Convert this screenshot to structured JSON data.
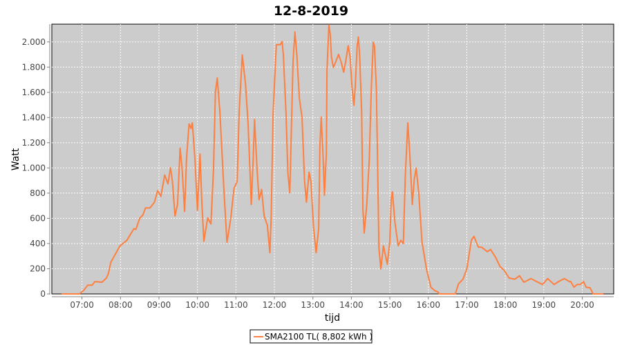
{
  "chart_data": {
    "type": "line",
    "title": "12-8-2019",
    "xlabel": "tijd",
    "ylabel": "Watt",
    "xlim": [
      "06:13",
      "20:49"
    ],
    "ylim": [
      0,
      2141
    ],
    "x_ticks": [
      "07:00",
      "08:00",
      "09:00",
      "10:00",
      "11:00",
      "12:00",
      "13:00",
      "14:00",
      "15:00",
      "16:00",
      "17:00",
      "18:00",
      "19:00",
      "20:00"
    ],
    "y_ticks": [
      0,
      200,
      400,
      600,
      800,
      1000,
      1200,
      1400,
      1600,
      1800,
      2000
    ],
    "y_tick_labels": [
      "0",
      "200",
      "400",
      "600",
      "800",
      "1.000",
      "1.200",
      "1.400",
      "1.600",
      "1.800",
      "2.000"
    ],
    "grid": true,
    "background": "#cccccc",
    "legend_position": "bottom",
    "series": [
      {
        "name": "SMA2100 TL( 8,802 kWh )",
        "color": "#ff7f3f",
        "points": [
          [
            "06:28",
            0
          ],
          [
            "06:56",
            0
          ],
          [
            "07:03",
            30
          ],
          [
            "07:09",
            70
          ],
          [
            "07:16",
            70
          ],
          [
            "07:20",
            98
          ],
          [
            "07:31",
            93
          ],
          [
            "07:38",
            126
          ],
          [
            "07:41",
            160
          ],
          [
            "07:45",
            252
          ],
          [
            "07:59",
            380
          ],
          [
            "08:10",
            426
          ],
          [
            "08:21",
            518
          ],
          [
            "08:24",
            512
          ],
          [
            "08:30",
            600
          ],
          [
            "08:35",
            627
          ],
          [
            "08:39",
            682
          ],
          [
            "08:46",
            682
          ],
          [
            "08:53",
            728
          ],
          [
            "08:58",
            820
          ],
          [
            "09:03",
            774
          ],
          [
            "09:09",
            944
          ],
          [
            "09:14",
            874
          ],
          [
            "09:18",
            1002
          ],
          [
            "09:21",
            893
          ],
          [
            "09:25",
            619
          ],
          [
            "09:29",
            710
          ],
          [
            "09:33",
            1157
          ],
          [
            "09:36",
            1002
          ],
          [
            "09:40",
            655
          ],
          [
            "09:43",
            1075
          ],
          [
            "09:47",
            1349
          ],
          [
            "09:50",
            1312
          ],
          [
            "09:52",
            1358
          ],
          [
            "09:56",
            1075
          ],
          [
            "10:00",
            664
          ],
          [
            "10:04",
            1111
          ],
          [
            "10:07",
            710
          ],
          [
            "10:10",
            418
          ],
          [
            "10:16",
            604
          ],
          [
            "10:21",
            555
          ],
          [
            "10:25",
            984
          ],
          [
            "10:28",
            1605
          ],
          [
            "10:31",
            1714
          ],
          [
            "10:35",
            1440
          ],
          [
            "10:41",
            856
          ],
          [
            "10:46",
            409
          ],
          [
            "10:52",
            600
          ],
          [
            "10:57",
            838
          ],
          [
            "11:02",
            893
          ],
          [
            "11:05",
            1440
          ],
          [
            "11:10",
            1897
          ],
          [
            "11:15",
            1660
          ],
          [
            "11:19",
            1349
          ],
          [
            "11:24",
            710
          ],
          [
            "11:27",
            1075
          ],
          [
            "11:29",
            1385
          ],
          [
            "11:33",
            984
          ],
          [
            "11:36",
            747
          ],
          [
            "11:40",
            829
          ],
          [
            "11:44",
            619
          ],
          [
            "11:49",
            546
          ],
          [
            "11:53",
            327
          ],
          [
            "11:55",
            619
          ],
          [
            "11:58",
            1440
          ],
          [
            "12:03",
            1978
          ],
          [
            "12:09",
            1978
          ],
          [
            "12:12",
            2002
          ],
          [
            "12:14",
            1897
          ],
          [
            "12:18",
            1440
          ],
          [
            "12:21",
            966
          ],
          [
            "12:24",
            802
          ],
          [
            "12:26",
            1221
          ],
          [
            "12:29",
            1842
          ],
          [
            "12:32",
            2080
          ],
          [
            "12:35",
            1897
          ],
          [
            "12:39",
            1550
          ],
          [
            "12:43",
            1404
          ],
          [
            "12:47",
            893
          ],
          [
            "12:50",
            728
          ],
          [
            "12:54",
            966
          ],
          [
            "12:57",
            893
          ],
          [
            "13:01",
            527
          ],
          [
            "13:05",
            327
          ],
          [
            "13:09",
            520
          ],
          [
            "13:11",
            1177
          ],
          [
            "13:13",
            1404
          ],
          [
            "13:16",
            1075
          ],
          [
            "13:18",
            783
          ],
          [
            "13:21",
            1111
          ],
          [
            "13:22",
            1769
          ],
          [
            "13:25",
            2135
          ],
          [
            "13:27",
            2062
          ],
          [
            "13:29",
            1879
          ],
          [
            "13:32",
            1797
          ],
          [
            "13:35",
            1834
          ],
          [
            "13:40",
            1901
          ],
          [
            "13:44",
            1842
          ],
          [
            "13:48",
            1760
          ],
          [
            "13:51",
            1842
          ],
          [
            "13:55",
            1970
          ],
          [
            "13:58",
            1879
          ],
          [
            "14:01",
            1642
          ],
          [
            "14:04",
            1496
          ],
          [
            "14:06",
            1642
          ],
          [
            "14:09",
            1970
          ],
          [
            "14:11",
            2039
          ],
          [
            "14:13",
            1879
          ],
          [
            "14:16",
            1440
          ],
          [
            "14:18",
            674
          ],
          [
            "14:20",
            483
          ],
          [
            "14:24",
            710
          ],
          [
            "14:28",
            1075
          ],
          [
            "14:31",
            1623
          ],
          [
            "14:34",
            1997
          ],
          [
            "14:36",
            1970
          ],
          [
            "14:39",
            1623
          ],
          [
            "14:41",
            984
          ],
          [
            "14:43",
            364
          ],
          [
            "14:46",
            199
          ],
          [
            "14:50",
            382
          ],
          [
            "14:56",
            236
          ],
          [
            "15:00",
            418
          ],
          [
            "15:02",
            747
          ],
          [
            "15:04",
            811
          ],
          [
            "15:08",
            564
          ],
          [
            "15:13",
            382
          ],
          [
            "15:17",
            426
          ],
          [
            "15:21",
            400
          ],
          [
            "15:24",
            930
          ],
          [
            "15:28",
            1358
          ],
          [
            "15:31",
            1111
          ],
          [
            "15:35",
            710
          ],
          [
            "15:38",
            911
          ],
          [
            "15:41",
            999
          ],
          [
            "15:45",
            802
          ],
          [
            "15:50",
            418
          ],
          [
            "15:57",
            199
          ],
          [
            "16:04",
            53
          ],
          [
            "16:10",
            26
          ],
          [
            "16:15",
            16
          ],
          [
            "16:17",
            0
          ],
          [
            "16:42",
            0
          ],
          [
            "16:47",
            80
          ],
          [
            "16:54",
            117
          ],
          [
            "17:00",
            199
          ],
          [
            "17:07",
            426
          ],
          [
            "17:11",
            457
          ],
          [
            "17:18",
            371
          ],
          [
            "17:23",
            371
          ],
          [
            "17:32",
            335
          ],
          [
            "17:37",
            353
          ],
          [
            "17:45",
            289
          ],
          [
            "17:52",
            216
          ],
          [
            "17:58",
            189
          ],
          [
            "18:06",
            126
          ],
          [
            "18:15",
            117
          ],
          [
            "18:22",
            144
          ],
          [
            "18:29",
            93
          ],
          [
            "18:40",
            122
          ],
          [
            "18:49",
            98
          ],
          [
            "18:58",
            75
          ],
          [
            "19:06",
            122
          ],
          [
            "19:16",
            75
          ],
          [
            "19:23",
            98
          ],
          [
            "19:32",
            122
          ],
          [
            "19:40",
            98
          ],
          [
            "19:42",
            98
          ],
          [
            "19:47",
            53
          ],
          [
            "19:52",
            75
          ],
          [
            "19:57",
            75
          ],
          [
            "20:02",
            98
          ],
          [
            "20:06",
            53
          ],
          [
            "20:12",
            49
          ],
          [
            "20:17",
            0
          ],
          [
            "20:33",
            0
          ]
        ]
      }
    ]
  }
}
